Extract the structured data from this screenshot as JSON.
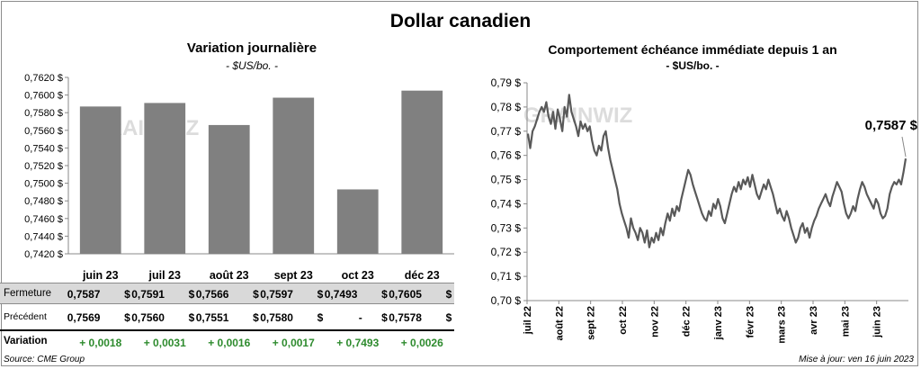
{
  "title": "Dollar canadien",
  "source": "Source: CME Group",
  "updated": "Mise à jour: ven 16 juin 2023",
  "watermark": "GRAINWIZ",
  "chart_data": [
    {
      "type": "bar",
      "title": "Variation  journalière",
      "subtitle": "- $US/bo. -",
      "categories": [
        "juin 23",
        "juil 23",
        "août 23",
        "sept 23",
        "oct 23",
        "déc 23"
      ],
      "values": [
        0.7587,
        0.7591,
        0.7566,
        0.7597,
        0.7493,
        0.7605
      ],
      "ylim": [
        0.742,
        0.762
      ],
      "yticks": [
        "0,7420 $",
        "0,7440 $",
        "0,7460 $",
        "0,7480 $",
        "0,7500 $",
        "0,7520 $",
        "0,7540 $",
        "0,7560 $",
        "0,7580 $",
        "0,7600 $",
        "0,7620 $"
      ],
      "ytick_values": [
        0.742,
        0.744,
        0.746,
        0.748,
        0.75,
        0.752,
        0.754,
        0.756,
        0.758,
        0.76,
        0.762
      ],
      "bar_color": "#808080"
    },
    {
      "type": "line",
      "title": "Comportement échéance immédiate depuis 1 an",
      "subtitle": "- $US/bo. -",
      "annotation": "0,7587 $",
      "ylim": [
        0.7,
        0.79
      ],
      "yticks": [
        "0,70 $",
        "0,71 $",
        "0,72 $",
        "0,73 $",
        "0,74 $",
        "0,75 $",
        "0,76 $",
        "0,77 $",
        "0,78 $",
        "0,79 $"
      ],
      "ytick_values": [
        0.7,
        0.71,
        0.72,
        0.73,
        0.74,
        0.75,
        0.76,
        0.77,
        0.78,
        0.79
      ],
      "xticks": [
        "juil 22",
        "août 22",
        "sept 22",
        "oct 22",
        "nov 22",
        "déc 22",
        "janv 23",
        "févr 23",
        "mars 23",
        "avr 23",
        "mai 23",
        "juin 23"
      ],
      "line_color": "#595959",
      "values": [
        0.769,
        0.763,
        0.77,
        0.772,
        0.775,
        0.778,
        0.78,
        0.778,
        0.782,
        0.776,
        0.773,
        0.778,
        0.771,
        0.779,
        0.775,
        0.77,
        0.78,
        0.776,
        0.785,
        0.778,
        0.775,
        0.772,
        0.768,
        0.774,
        0.771,
        0.773,
        0.77,
        0.772,
        0.766,
        0.762,
        0.76,
        0.764,
        0.762,
        0.768,
        0.77,
        0.763,
        0.758,
        0.754,
        0.75,
        0.746,
        0.74,
        0.736,
        0.733,
        0.73,
        0.726,
        0.734,
        0.73,
        0.728,
        0.725,
        0.73,
        0.728,
        0.724,
        0.729,
        0.722,
        0.726,
        0.724,
        0.728,
        0.725,
        0.73,
        0.727,
        0.732,
        0.736,
        0.733,
        0.738,
        0.735,
        0.739,
        0.737,
        0.742,
        0.746,
        0.75,
        0.754,
        0.752,
        0.748,
        0.745,
        0.742,
        0.739,
        0.736,
        0.734,
        0.733,
        0.737,
        0.735,
        0.74,
        0.738,
        0.742,
        0.739,
        0.734,
        0.732,
        0.736,
        0.74,
        0.744,
        0.747,
        0.745,
        0.749,
        0.746,
        0.75,
        0.748,
        0.751,
        0.747,
        0.752,
        0.748,
        0.744,
        0.742,
        0.745,
        0.748,
        0.746,
        0.75,
        0.747,
        0.744,
        0.74,
        0.736,
        0.738,
        0.735,
        0.733,
        0.737,
        0.734,
        0.73,
        0.727,
        0.724,
        0.726,
        0.73,
        0.732,
        0.728,
        0.73,
        0.726,
        0.73,
        0.733,
        0.735,
        0.738,
        0.74,
        0.742,
        0.744,
        0.741,
        0.739,
        0.743,
        0.746,
        0.749,
        0.747,
        0.745,
        0.74,
        0.736,
        0.734,
        0.736,
        0.739,
        0.737,
        0.742,
        0.746,
        0.749,
        0.747,
        0.744,
        0.742,
        0.74,
        0.738,
        0.742,
        0.74,
        0.736,
        0.734,
        0.735,
        0.738,
        0.744,
        0.747,
        0.749,
        0.748,
        0.75,
        0.748,
        0.753,
        0.7587
      ]
    }
  ],
  "table": {
    "rows": [
      {
        "label": "Fermeture",
        "values": [
          "0,7587",
          "0,7591",
          "0,7566",
          "0,7597",
          "0,7493",
          "0,7605"
        ],
        "currency": "$"
      },
      {
        "label": "Précédent",
        "values": [
          "0,7569",
          "0,7560",
          "0,7551",
          "0,7580",
          "-",
          "0,7578"
        ],
        "currency": "$"
      }
    ],
    "variation_label": "Variation",
    "variation": [
      "+ 0,0018",
      "+ 0,0031",
      "+ 0,0016",
      "+ 0,0017",
      "+ 0,7493",
      "+ 0,0026"
    ],
    "variation_color": "#2e8b2e"
  }
}
